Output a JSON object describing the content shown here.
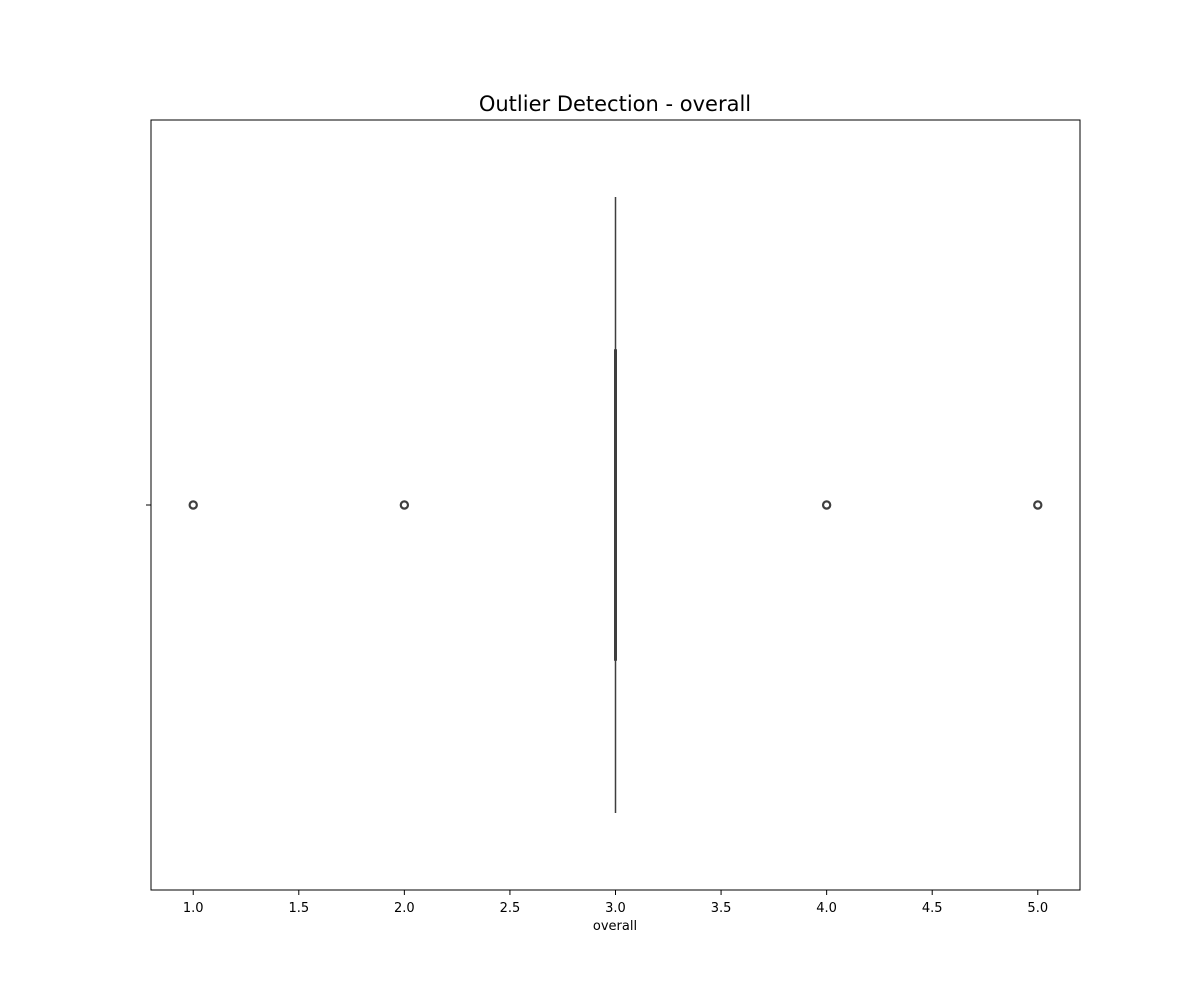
{
  "chart_data": {
    "type": "box",
    "title": "Outlier Detection - overall",
    "xlabel": "overall",
    "ylabel": "",
    "orientation": "horizontal",
    "xlim": [
      0.8,
      5.2
    ],
    "xticks": [
      1.0,
      1.5,
      2.0,
      2.5,
      3.0,
      3.5,
      4.0,
      4.5,
      5.0
    ],
    "xtick_labels": [
      "1.0",
      "1.5",
      "2.0",
      "2.5",
      "3.0",
      "3.5",
      "4.0",
      "4.5",
      "5.0"
    ],
    "box": {
      "q1": 3.0,
      "median": 3.0,
      "q3": 3.0,
      "whisker_low": 3.0,
      "whisker_high": 3.0
    },
    "outliers": [
      1.0,
      2.0,
      4.0,
      5.0
    ],
    "grid": false,
    "colors": {
      "box_line": "#3f3f3f",
      "outlier_edge": "#3f3f3f",
      "axes": "#000000"
    }
  }
}
